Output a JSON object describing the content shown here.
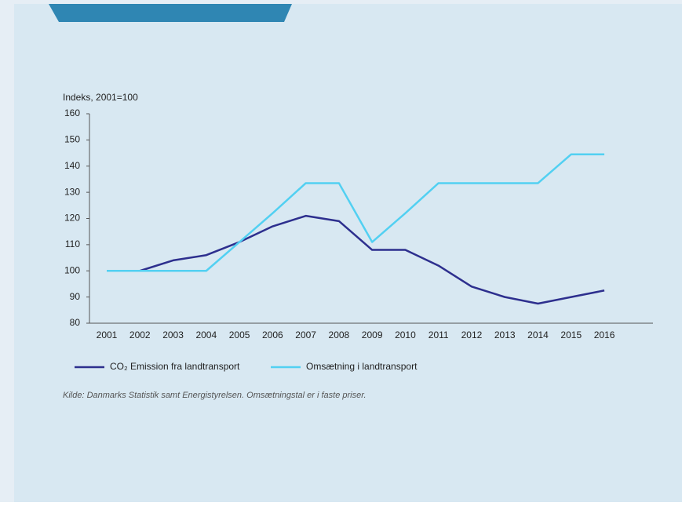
{
  "chart_data": {
    "type": "line",
    "y_label": "Indeks, 2001=100",
    "categories": [
      "2001",
      "2002",
      "2003",
      "2004",
      "2005",
      "2006",
      "2007",
      "2008",
      "2009",
      "2010",
      "2011",
      "2012",
      "2013",
      "2014",
      "2015",
      "2016"
    ],
    "series": [
      {
        "name": "CO₂ Emission fra landtransport",
        "color": "#2d2f8e",
        "values": [
          100,
          100,
          104,
          106,
          111,
          117,
          121,
          119,
          108,
          108,
          102,
          94,
          90,
          87.5,
          90,
          92.5
        ]
      },
      {
        "name": "Omsætning i landtransport",
        "color": "#52d0f2",
        "values": [
          100,
          100,
          100,
          100,
          111,
          122,
          133.5,
          133.5,
          111,
          122,
          133.5,
          133.5,
          133.5,
          133.5,
          144.5,
          144.5
        ]
      }
    ],
    "ylim": [
      80,
      160
    ],
    "yticks": [
      80,
      90,
      100,
      110,
      120,
      130,
      140,
      150,
      160
    ],
    "note": "Kilde: Danmarks Statistik samt Energistyrelsen. Omsætningstal er i faste priser."
  }
}
